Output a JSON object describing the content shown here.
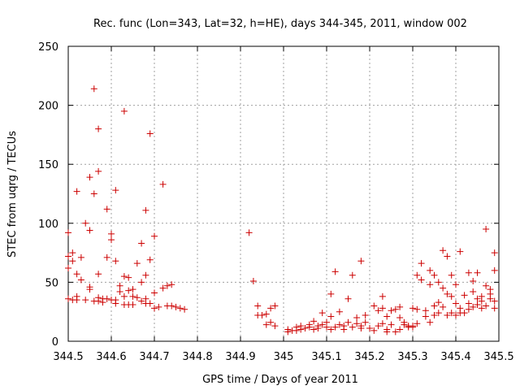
{
  "chart_data": {
    "type": "scatter",
    "title": "Rec. func (Lon=343, Lat=32, h=HE), days 344-345, 2011, window 002",
    "xlabel": "GPS time / Days of year 2011",
    "ylabel": "STEC from uqrg / TECUs",
    "xlim": [
      344.5,
      345.5
    ],
    "ylim": [
      0,
      250
    ],
    "xticks": [
      "344.5",
      "344.6",
      "344.7",
      "344.8",
      "344.9",
      "345",
      "345.1",
      "345.2",
      "345.3",
      "345.4",
      "345.5"
    ],
    "yticks": [
      "0",
      "50",
      "100",
      "150",
      "200",
      "250"
    ],
    "grid": true,
    "marker": "+",
    "marker_color": "#cc0000",
    "points": [
      [
        344.5,
        92
      ],
      [
        344.5,
        72
      ],
      [
        344.5,
        62
      ],
      [
        344.5,
        36
      ],
      [
        344.51,
        35
      ],
      [
        344.51,
        75
      ],
      [
        344.51,
        68
      ],
      [
        344.52,
        127
      ],
      [
        344.52,
        57
      ],
      [
        344.52,
        38
      ],
      [
        344.52,
        35
      ],
      [
        344.53,
        71
      ],
      [
        344.53,
        52
      ],
      [
        344.54,
        100
      ],
      [
        344.54,
        35
      ],
      [
        344.55,
        139
      ],
      [
        344.55,
        94
      ],
      [
        344.55,
        46
      ],
      [
        344.55,
        44
      ],
      [
        344.56,
        34
      ],
      [
        344.56,
        214
      ],
      [
        344.56,
        125
      ],
      [
        344.57,
        34
      ],
      [
        344.57,
        180
      ],
      [
        344.57,
        144
      ],
      [
        344.57,
        57
      ],
      [
        344.57,
        37
      ],
      [
        344.58,
        36
      ],
      [
        344.58,
        33
      ],
      [
        344.59,
        112
      ],
      [
        344.59,
        71
      ],
      [
        344.59,
        36
      ],
      [
        344.6,
        35
      ],
      [
        344.6,
        91
      ],
      [
        344.6,
        86
      ],
      [
        344.61,
        35
      ],
      [
        344.61,
        128
      ],
      [
        344.61,
        68
      ],
      [
        344.61,
        32
      ],
      [
        344.62,
        42
      ],
      [
        344.62,
        47
      ],
      [
        344.63,
        195
      ],
      [
        344.63,
        55
      ],
      [
        344.63,
        31
      ],
      [
        344.63,
        38
      ],
      [
        344.64,
        54
      ],
      [
        344.64,
        43
      ],
      [
        344.64,
        31
      ],
      [
        344.65,
        44
      ],
      [
        344.65,
        38
      ],
      [
        344.65,
        31
      ],
      [
        344.66,
        66
      ],
      [
        344.66,
        37
      ],
      [
        344.67,
        83
      ],
      [
        344.67,
        50
      ],
      [
        344.67,
        34
      ],
      [
        344.68,
        111
      ],
      [
        344.68,
        56
      ],
      [
        344.68,
        36
      ],
      [
        344.68,
        32
      ],
      [
        344.69,
        176
      ],
      [
        344.69,
        69
      ],
      [
        344.69,
        32
      ],
      [
        344.7,
        89
      ],
      [
        344.7,
        41
      ],
      [
        344.7,
        28
      ],
      [
        344.71,
        29
      ],
      [
        344.72,
        133
      ],
      [
        344.72,
        45
      ],
      [
        344.73,
        30
      ],
      [
        344.73,
        47
      ],
      [
        344.74,
        30
      ],
      [
        344.74,
        48
      ],
      [
        344.75,
        29
      ],
      [
        344.76,
        28
      ],
      [
        344.77,
        27
      ],
      [
        344.92,
        92
      ],
      [
        344.93,
        51
      ],
      [
        344.94,
        30
      ],
      [
        344.94,
        22
      ],
      [
        344.95,
        22
      ],
      [
        344.96,
        23
      ],
      [
        344.96,
        14
      ],
      [
        344.97,
        28
      ],
      [
        344.97,
        16
      ],
      [
        344.98,
        13
      ],
      [
        344.98,
        30
      ],
      [
        345.01,
        8
      ],
      [
        345.01,
        10
      ],
      [
        345.02,
        9
      ],
      [
        345.03,
        9
      ],
      [
        345.03,
        12
      ],
      [
        345.04,
        10
      ],
      [
        345.04,
        13
      ],
      [
        345.05,
        11
      ],
      [
        345.06,
        12
      ],
      [
        345.06,
        14
      ],
      [
        345.07,
        10
      ],
      [
        345.07,
        17
      ],
      [
        345.08,
        11
      ],
      [
        345.08,
        13
      ],
      [
        345.09,
        14
      ],
      [
        345.09,
        24
      ],
      [
        345.1,
        12
      ],
      [
        345.1,
        16
      ],
      [
        345.11,
        40
      ],
      [
        345.11,
        10
      ],
      [
        345.11,
        21
      ],
      [
        345.12,
        12
      ],
      [
        345.12,
        59
      ],
      [
        345.13,
        14
      ],
      [
        345.13,
        25
      ],
      [
        345.14,
        10
      ],
      [
        345.14,
        13
      ],
      [
        345.15,
        36
      ],
      [
        345.15,
        16
      ],
      [
        345.16,
        12
      ],
      [
        345.16,
        56
      ],
      [
        345.17,
        20
      ],
      [
        345.17,
        15
      ],
      [
        345.18,
        68
      ],
      [
        345.18,
        11
      ],
      [
        345.18,
        13
      ],
      [
        345.19,
        22
      ],
      [
        345.19,
        16
      ],
      [
        345.2,
        11
      ],
      [
        345.21,
        30
      ],
      [
        345.21,
        9
      ],
      [
        345.22,
        13
      ],
      [
        345.22,
        26
      ],
      [
        345.23,
        38
      ],
      [
        345.23,
        28
      ],
      [
        345.23,
        15
      ],
      [
        345.24,
        10
      ],
      [
        345.24,
        21
      ],
      [
        345.24,
        8
      ],
      [
        345.25,
        26
      ],
      [
        345.25,
        14
      ],
      [
        345.26,
        8
      ],
      [
        345.26,
        27
      ],
      [
        345.27,
        10
      ],
      [
        345.27,
        29
      ],
      [
        345.27,
        20
      ],
      [
        345.28,
        14
      ],
      [
        345.28,
        16
      ],
      [
        345.29,
        12
      ],
      [
        345.29,
        13
      ],
      [
        345.3,
        12
      ],
      [
        345.3,
        13
      ],
      [
        345.3,
        28
      ],
      [
        345.31,
        56
      ],
      [
        345.31,
        15
      ],
      [
        345.31,
        27
      ],
      [
        345.32,
        66
      ],
      [
        345.32,
        52
      ],
      [
        345.33,
        26
      ],
      [
        345.33,
        21
      ],
      [
        345.34,
        48
      ],
      [
        345.34,
        60
      ],
      [
        345.34,
        16
      ],
      [
        345.35,
        30
      ],
      [
        345.35,
        56
      ],
      [
        345.35,
        22
      ],
      [
        345.36,
        33
      ],
      [
        345.36,
        50
      ],
      [
        345.36,
        24
      ],
      [
        345.37,
        77
      ],
      [
        345.37,
        29
      ],
      [
        345.37,
        45
      ],
      [
        345.38,
        72
      ],
      [
        345.38,
        40
      ],
      [
        345.38,
        22
      ],
      [
        345.39,
        38
      ],
      [
        345.39,
        56
      ],
      [
        345.39,
        24
      ],
      [
        345.4,
        48
      ],
      [
        345.4,
        32
      ],
      [
        345.4,
        22
      ],
      [
        345.41,
        76
      ],
      [
        345.41,
        24
      ],
      [
        345.41,
        28
      ],
      [
        345.42,
        39
      ],
      [
        345.42,
        24
      ],
      [
        345.43,
        58
      ],
      [
        345.43,
        32
      ],
      [
        345.43,
        27
      ],
      [
        345.44,
        51
      ],
      [
        345.44,
        42
      ],
      [
        345.44,
        29
      ],
      [
        345.45,
        58
      ],
      [
        345.45,
        36
      ],
      [
        345.45,
        31
      ],
      [
        345.46,
        34
      ],
      [
        345.46,
        28
      ],
      [
        345.46,
        38
      ],
      [
        345.47,
        95
      ],
      [
        345.47,
        47
      ],
      [
        345.47,
        30
      ],
      [
        345.48,
        36
      ],
      [
        345.48,
        40
      ],
      [
        345.48,
        44
      ],
      [
        345.49,
        75
      ],
      [
        345.49,
        60
      ],
      [
        345.49,
        34
      ],
      [
        345.49,
        28
      ]
    ]
  }
}
